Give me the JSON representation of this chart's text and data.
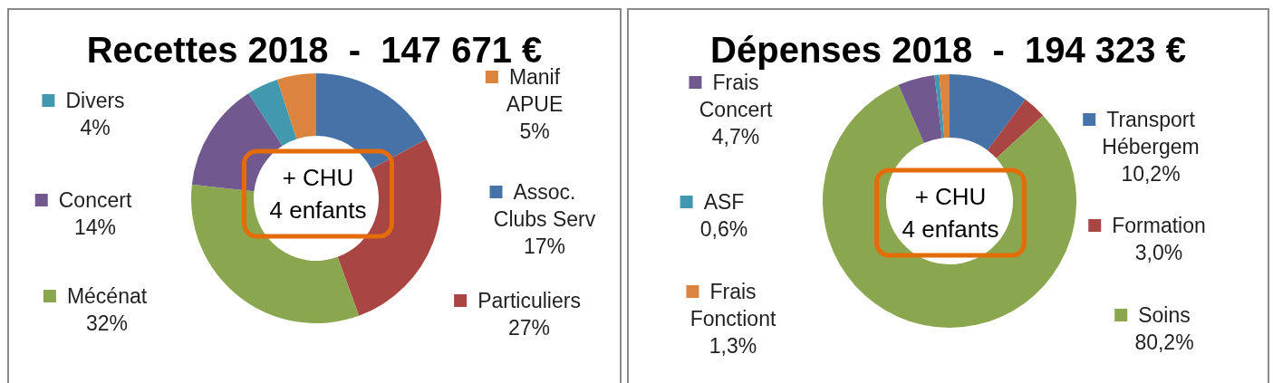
{
  "chart_data": [
    {
      "type": "donut",
      "title": "Recettes 2018  -  147 671 €",
      "categories": [
        "Assoc. Clubs Serv",
        "Particuliers",
        "Mécénat",
        "Concert",
        "Divers",
        "Manif APUE"
      ],
      "values": [
        17,
        27,
        32,
        14,
        4,
        5
      ],
      "colors": [
        "#4672a8",
        "#a94643",
        "#8aa64e",
        "#71588f",
        "#4198af",
        "#db843d"
      ],
      "value_labels": [
        "17%",
        "27%",
        "32%",
        "14%",
        "4%",
        "5%"
      ],
      "annotations": [
        "+ CHU\n4 enfants"
      ],
      "legend": "left"
    },
    {
      "type": "donut",
      "title": "Dépenses 2018  -  194 323 €",
      "categories": [
        "Transport Hébergem",
        "Formation",
        "Soins",
        "Frais Concert",
        "ASF",
        "Frais Fonctiont"
      ],
      "values": [
        10.2,
        3.0,
        80.2,
        4.7,
        0.6,
        1.3
      ],
      "colors": [
        "#4672a8",
        "#a94643",
        "#8aa64e",
        "#71588f",
        "#4198af",
        "#db843d"
      ],
      "value_labels": [
        "10,2%",
        "3,0%",
        "80,2%",
        "4,7%",
        "0,6%",
        "1,3%"
      ],
      "annotations": [
        "+ CHU\n4 enfants"
      ],
      "legend": "left"
    }
  ]
}
